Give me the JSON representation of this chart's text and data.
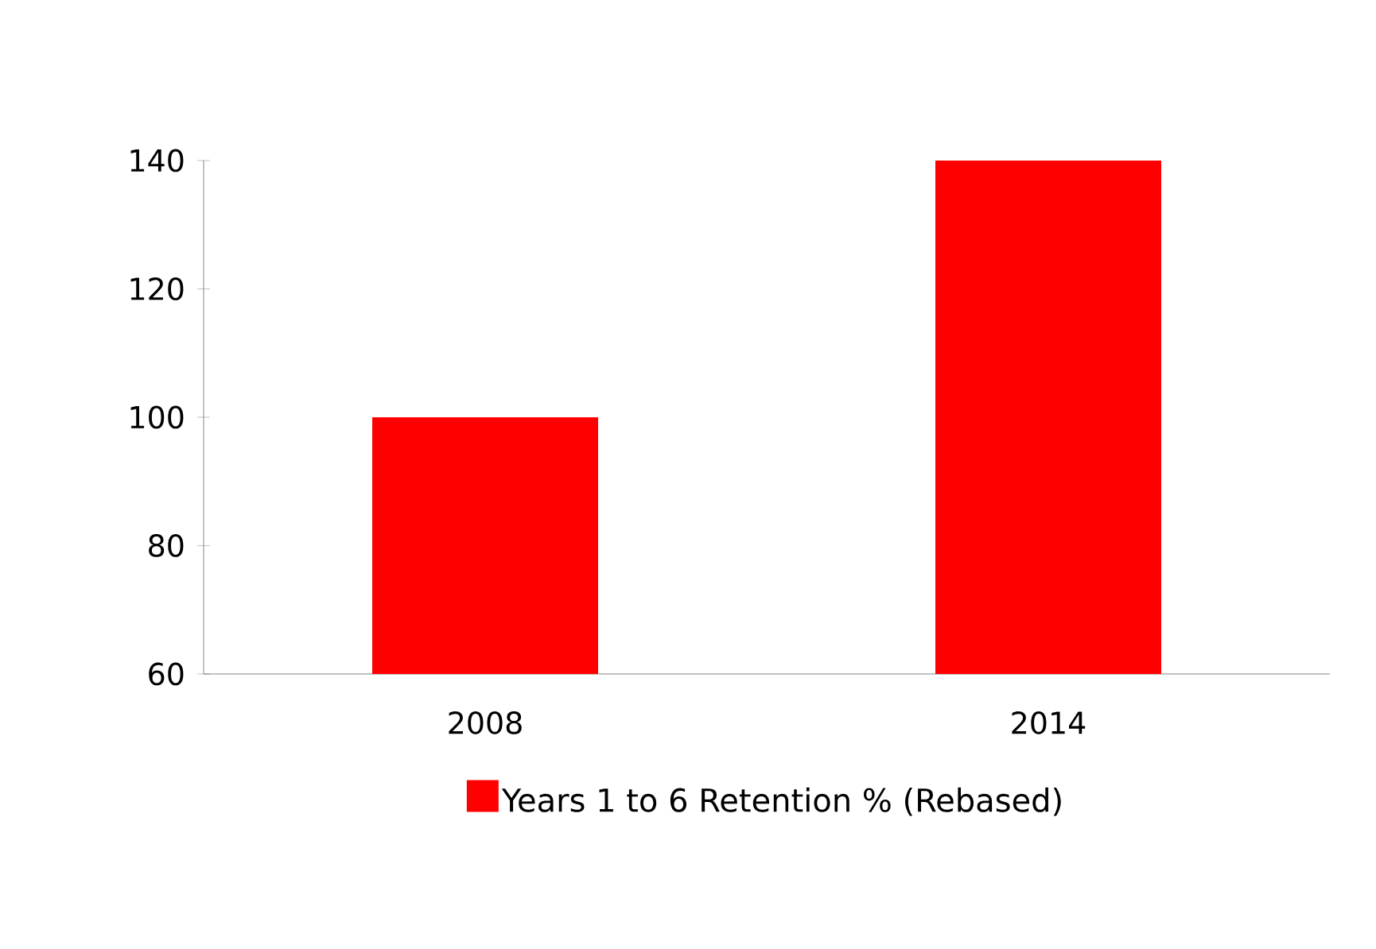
{
  "chart_data": {
    "type": "bar",
    "categories": [
      "2008",
      "2014"
    ],
    "series": [
      {
        "name": "Years 1 to 6 Retention % (Rebased)",
        "color": "#ff0000",
        "values": [
          100,
          140
        ]
      }
    ],
    "ylim": [
      60,
      140
    ],
    "yticks": [
      60,
      80,
      100,
      120,
      140
    ],
    "grid": false,
    "legend": "bottom"
  }
}
